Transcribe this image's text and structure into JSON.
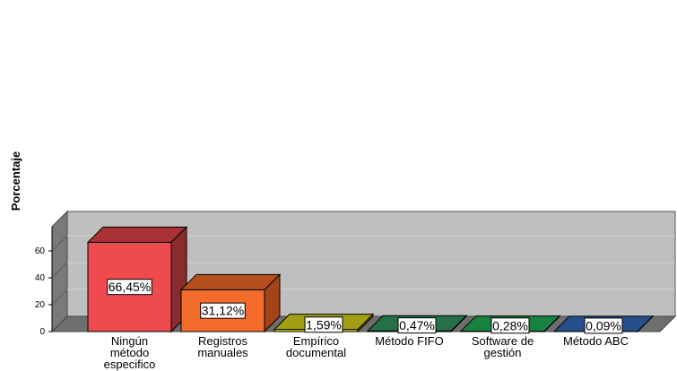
{
  "chart_data": {
    "type": "bar",
    "title": "",
    "xlabel": "",
    "ylabel": "Porcentaje",
    "ylim": [
      0,
      70
    ],
    "yticks": [
      0,
      20,
      40,
      60
    ],
    "grid": true,
    "legend": "none",
    "categories": [
      [
        "Ningún",
        "método",
        "especifico"
      ],
      [
        "Registros",
        "manuales"
      ],
      [
        "Empírico",
        "documental"
      ],
      [
        "Método FIFO"
      ],
      [
        "Software de",
        "gestión"
      ],
      [
        "Método ABC"
      ]
    ],
    "values": [
      66.45,
      31.12,
      1.59,
      0.47,
      0.28,
      0.09
    ],
    "data_labels": [
      "66,45%",
      "31,12%",
      "1,59%",
      "0,47%",
      "0,28%",
      "0,09%"
    ],
    "colors": {
      "front": [
        "#ef4b4f",
        "#f36b2b",
        "#dcd61e",
        "#2f8a55",
        "#20a050",
        "#2f61a8"
      ],
      "side": [
        "#8a2b2e",
        "#a34418",
        "#8c8810",
        "#1f5f3a",
        "#156d37",
        "#1e4273"
      ],
      "top": [
        "#a83235",
        "#b44f1d",
        "#a39f14",
        "#257046",
        "#188040",
        "#244f8a"
      ],
      "plot_back": "#bfbfbf",
      "plot_wall": "#7a7a7a",
      "plot_floor": "#6e6e6e",
      "grid": "#d6d6d6"
    }
  }
}
